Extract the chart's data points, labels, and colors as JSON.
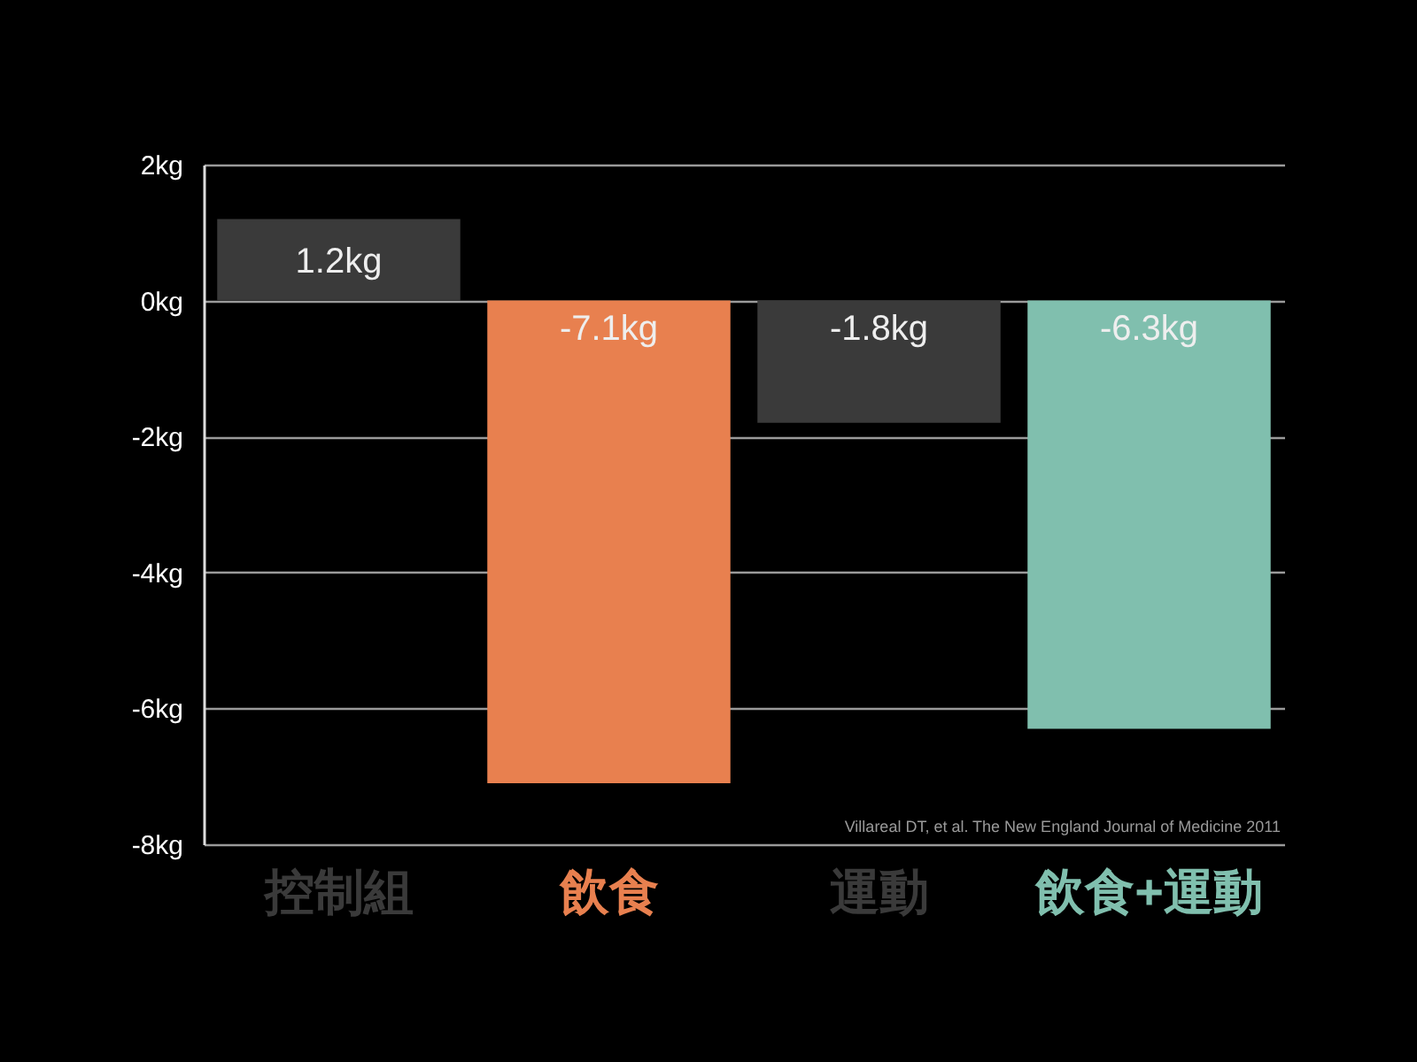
{
  "chart_data": {
    "type": "bar",
    "categories": [
      "控制組",
      "飲食",
      "運動",
      "飲食+運動"
    ],
    "values": [
      1.2,
      -7.1,
      -1.8,
      -6.3
    ],
    "colors": [
      "#3a3a3a",
      "#e8804f",
      "#3a3a3a",
      "#80bfae"
    ],
    "value_labels": [
      "1.2kg",
      "-7.1kg",
      "-1.8kg",
      "-6.3kg"
    ],
    "ylim": [
      -8,
      2
    ],
    "yticks": [
      {
        "value": 2,
        "label": "2kg"
      },
      {
        "value": 0,
        "label": "0kg"
      },
      {
        "value": -2,
        "label": "-2kg"
      },
      {
        "value": -4,
        "label": "-4kg"
      },
      {
        "value": -6,
        "label": "-6kg"
      },
      {
        "value": -8,
        "label": "-8kg"
      }
    ],
    "grid": "y",
    "annotations": [
      "Villareal DT, et al. The New England Journal of Medicine 2011"
    ]
  }
}
